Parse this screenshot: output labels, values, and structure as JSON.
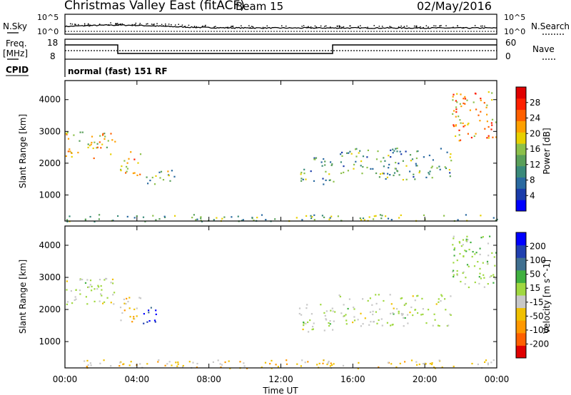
{
  "header": {
    "title": "Christmas Valley East (fitACF)",
    "beam_label": "Beam 15",
    "date": "02/May/2016"
  },
  "status_panels": {
    "nsky_label": "N.Sky",
    "nsky_ticks": [
      "10^5",
      "10^0"
    ],
    "nsearch_label": "N.Search",
    "nsearch_ticks": [
      "10^5",
      "10^0"
    ],
    "freq_label": "Freq.",
    "freq_unit": "[MHz]",
    "freq_ticks": [
      "18",
      "8"
    ],
    "nave_label": "Nave",
    "nave_ticks": [
      "60",
      "0"
    ],
    "cpid_label": "CPID",
    "cpid_text": "normal (fast) 151 RF"
  },
  "colors": {
    "power_scale": [
      "#0000ff",
      "#1a3caa",
      "#2a6aa0",
      "#3a8a7a",
      "#5aa05a",
      "#8cc04a",
      "#e8d000",
      "#ffa000",
      "#ff6000",
      "#ff2000",
      "#e00000"
    ],
    "velocity_scale": [
      "#e00000",
      "#ff6000",
      "#ff9800",
      "#f0c000",
      "#c8c8c8",
      "#a0d840",
      "#40b040",
      "#407090",
      "#2040b0",
      "#0000ff"
    ]
  },
  "chart_data": [
    {
      "type": "heatmap",
      "name": "power_panel",
      "xlabel": "Time UT",
      "ylabel": "Slant Range [km]",
      "x_ticks": [
        "00:00",
        "04:00",
        "08:00",
        "12:00",
        "16:00",
        "20:00",
        "00:00"
      ],
      "x_range_hours": [
        0,
        24
      ],
      "y_ticks": [
        1000,
        2000,
        3000,
        4000
      ],
      "ylim": [
        180,
        4600
      ],
      "colorbar_label": "Power [dB]",
      "colorbar_ticks": [
        "4",
        "8",
        "12",
        "16",
        "20",
        "24",
        "28"
      ],
      "colorbar_range": [
        0,
        30
      ],
      "features": [
        {
          "t0": 0.0,
          "t1": 2.8,
          "r0": 2150,
          "r1": 3000,
          "level": 0.6
        },
        {
          "t0": 3.0,
          "t1": 4.2,
          "r0": 1600,
          "r1": 2400,
          "level": 0.7
        },
        {
          "t0": 4.5,
          "t1": 6.6,
          "r0": 1350,
          "r1": 1800,
          "level": 0.45
        },
        {
          "t0": 13.0,
          "t1": 15.0,
          "r0": 1300,
          "r1": 2200,
          "level": 0.35
        },
        {
          "t0": 15.2,
          "t1": 21.5,
          "r0": 1500,
          "r1": 2500,
          "level": 0.35
        },
        {
          "t0": 21.5,
          "t1": 24.0,
          "r0": 2700,
          "r1": 4300,
          "level": 0.7
        },
        {
          "t0": 0.0,
          "t1": 24.0,
          "r0": 180,
          "r1": 400,
          "level": 0.4
        }
      ]
    },
    {
      "type": "heatmap",
      "name": "velocity_panel",
      "xlabel": "Time UT",
      "ylabel": "Slant Range [km]",
      "x_ticks": [
        "00:00",
        "04:00",
        "08:00",
        "12:00",
        "16:00",
        "20:00",
        "00:00"
      ],
      "x_range_hours": [
        0,
        24
      ],
      "y_ticks": [
        1000,
        2000,
        3000,
        4000
      ],
      "ylim": [
        180,
        4600
      ],
      "colorbar_label": "Velocity [m s^-1]",
      "colorbar_ticks": [
        "-200",
        "-100",
        "-50",
        "-15",
        "15",
        "50",
        "100",
        "200"
      ],
      "colorbar_range": [
        -250,
        250
      ],
      "features": [
        {
          "t0": 0.0,
          "t1": 2.8,
          "r0": 2150,
          "r1": 3000,
          "level": 0.0
        },
        {
          "t0": 3.0,
          "t1": 4.2,
          "r0": 1600,
          "r1": 2400,
          "level": -0.3
        },
        {
          "t0": 4.3,
          "t1": 5.2,
          "r0": 1500,
          "r1": 2100,
          "level": 0.9
        },
        {
          "t0": 13.0,
          "t1": 15.0,
          "r0": 1300,
          "r1": 2200,
          "level": 0.0
        },
        {
          "t0": 15.2,
          "t1": 21.5,
          "r0": 1500,
          "r1": 2500,
          "level": 0.0
        },
        {
          "t0": 21.5,
          "t1": 24.0,
          "r0": 2700,
          "r1": 4300,
          "level": 0.1
        },
        {
          "t0": 0.0,
          "t1": 24.0,
          "r0": 180,
          "r1": 450,
          "level": -0.3
        }
      ]
    }
  ]
}
